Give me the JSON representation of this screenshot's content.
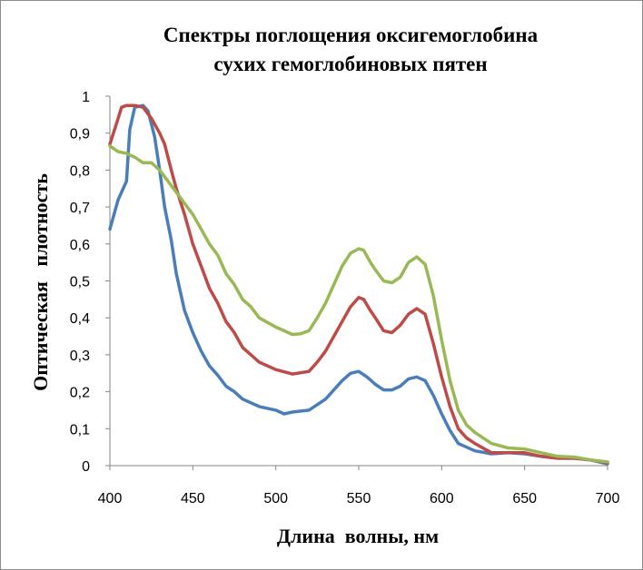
{
  "chart_data": {
    "type": "line",
    "title": [
      "Спектры поглощения оксигемоглобина",
      "сухих гемоглобиновых пятен"
    ],
    "xlabel": "Длина  волны, нм",
    "ylabel": "Оптическая   плотность",
    "xlim": [
      400,
      700
    ],
    "ylim": [
      0,
      1
    ],
    "xticks": [
      400,
      450,
      500,
      550,
      600,
      650,
      700
    ],
    "xtick_labels": [
      "400",
      "450",
      "500",
      "550",
      "600",
      "650",
      "700"
    ],
    "yticks": [
      0,
      0.1,
      0.2,
      0.3,
      0.4,
      0.5,
      0.6,
      0.7,
      0.8,
      0.9,
      1
    ],
    "ytick_labels": [
      "0",
      "0,1",
      "0,2",
      "0,3",
      "0,4",
      "0,5",
      "0,6",
      "0,7",
      "0,8",
      "0,9",
      "1"
    ],
    "grid": false,
    "legend": "none",
    "series": [
      {
        "name": "blue",
        "color": "#4a7ebb",
        "x": [
          400,
          405,
          410,
          412,
          415,
          420,
          423,
          427,
          430,
          433,
          437,
          440,
          445,
          450,
          455,
          460,
          465,
          470,
          475,
          480,
          490,
          500,
          505,
          510,
          520,
          530,
          540,
          545,
          550,
          555,
          560,
          565,
          570,
          575,
          580,
          585,
          590,
          595,
          600,
          605,
          610,
          620,
          630,
          640,
          650,
          660,
          670,
          680,
          690,
          700
        ],
        "y": [
          0.64,
          0.72,
          0.77,
          0.91,
          0.97,
          0.975,
          0.96,
          0.89,
          0.8,
          0.7,
          0.61,
          0.52,
          0.42,
          0.36,
          0.31,
          0.27,
          0.245,
          0.215,
          0.2,
          0.18,
          0.16,
          0.15,
          0.14,
          0.145,
          0.15,
          0.18,
          0.23,
          0.25,
          0.255,
          0.24,
          0.22,
          0.205,
          0.205,
          0.215,
          0.235,
          0.24,
          0.23,
          0.19,
          0.14,
          0.095,
          0.06,
          0.04,
          0.032,
          0.035,
          0.032,
          0.025,
          0.02,
          0.02,
          0.015,
          0.005
        ]
      },
      {
        "name": "red",
        "color": "#be4b48",
        "x": [
          400,
          405,
          407,
          410,
          415,
          420,
          425,
          430,
          433,
          437,
          440,
          445,
          450,
          455,
          460,
          465,
          470,
          475,
          480,
          490,
          500,
          510,
          520,
          525,
          530,
          540,
          545,
          550,
          553,
          557,
          560,
          565,
          570,
          575,
          580,
          585,
          590,
          595,
          600,
          605,
          610,
          615,
          620,
          630,
          640,
          650,
          660,
          670,
          680,
          690,
          700
        ],
        "y": [
          0.87,
          0.94,
          0.97,
          0.975,
          0.975,
          0.97,
          0.94,
          0.9,
          0.87,
          0.8,
          0.75,
          0.68,
          0.6,
          0.54,
          0.48,
          0.44,
          0.39,
          0.36,
          0.32,
          0.28,
          0.26,
          0.248,
          0.255,
          0.28,
          0.31,
          0.39,
          0.43,
          0.455,
          0.45,
          0.42,
          0.4,
          0.365,
          0.36,
          0.38,
          0.41,
          0.425,
          0.41,
          0.33,
          0.24,
          0.16,
          0.1,
          0.075,
          0.06,
          0.035,
          0.035,
          0.035,
          0.025,
          0.02,
          0.02,
          0.015,
          0.008
        ]
      },
      {
        "name": "green",
        "color": "#98b954",
        "x": [
          400,
          405,
          410,
          415,
          420,
          425,
          430,
          435,
          440,
          445,
          450,
          455,
          460,
          465,
          470,
          475,
          480,
          485,
          490,
          500,
          505,
          510,
          515,
          520,
          525,
          530,
          535,
          540,
          545,
          550,
          553,
          557,
          560,
          565,
          570,
          575,
          580,
          585,
          590,
          595,
          600,
          605,
          610,
          615,
          620,
          630,
          640,
          650,
          660,
          670,
          680,
          690,
          700
        ],
        "y": [
          0.865,
          0.85,
          0.845,
          0.835,
          0.82,
          0.82,
          0.8,
          0.77,
          0.74,
          0.71,
          0.68,
          0.64,
          0.6,
          0.57,
          0.52,
          0.49,
          0.45,
          0.43,
          0.4,
          0.375,
          0.365,
          0.355,
          0.357,
          0.365,
          0.4,
          0.44,
          0.49,
          0.54,
          0.575,
          0.587,
          0.583,
          0.55,
          0.53,
          0.5,
          0.495,
          0.51,
          0.55,
          0.565,
          0.545,
          0.46,
          0.34,
          0.23,
          0.15,
          0.11,
          0.09,
          0.06,
          0.048,
          0.045,
          0.035,
          0.025,
          0.023,
          0.015,
          0.01
        ]
      }
    ]
  }
}
